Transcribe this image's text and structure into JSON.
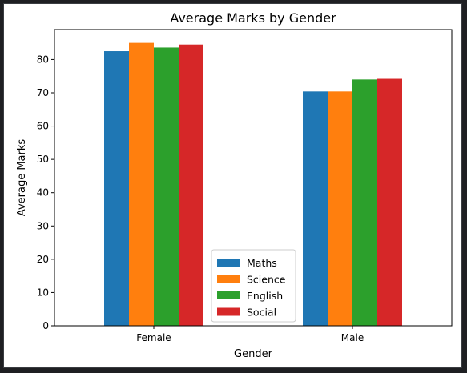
{
  "chart_data": {
    "type": "bar",
    "title": "Average Marks by Gender",
    "xlabel": "Gender",
    "ylabel": "Average Marks",
    "categories": [
      "Female",
      "Male"
    ],
    "series": [
      {
        "name": "Maths",
        "values": [
          82.5,
          70.4
        ],
        "color": "#1f77b4"
      },
      {
        "name": "Science",
        "values": [
          85.0,
          70.4
        ],
        "color": "#ff7f0e"
      },
      {
        "name": "English",
        "values": [
          83.6,
          74.0
        ],
        "color": "#2ca02c"
      },
      {
        "name": "Social",
        "values": [
          84.5,
          74.2
        ],
        "color": "#d62728"
      }
    ],
    "ylim": [
      0,
      89
    ],
    "yticks": [
      0,
      10,
      20,
      30,
      40,
      50,
      60,
      70,
      80
    ],
    "grid": false,
    "legend_position": "lower center"
  }
}
